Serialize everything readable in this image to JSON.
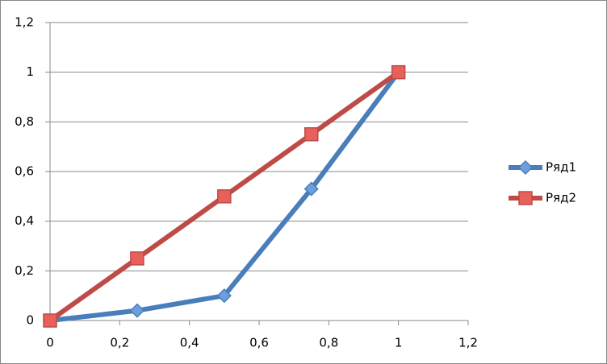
{
  "chart_data": {
    "type": "scatter",
    "x": [
      0,
      0.25,
      0.5,
      0.75,
      1
    ],
    "series": [
      {
        "name": "Ряд1",
        "color": "#4a7ebb",
        "marker": "diamond",
        "values": [
          0,
          0.04,
          0.1,
          0.53,
          1
        ]
      },
      {
        "name": "Ряд2",
        "color": "#be4b48",
        "marker": "square",
        "values": [
          0,
          0.25,
          0.5,
          0.75,
          1
        ]
      }
    ],
    "xlim": [
      0,
      1.2
    ],
    "xticks": [
      0,
      {
        "value": 0.2,
        "label": "0,2"
      },
      {
        "value": 0.4,
        "label": "0,4"
      },
      {
        "value": 0.6,
        "label": "0,6"
      },
      {
        "value": 0.8,
        "label": "0,8"
      },
      1,
      {
        "value": 1.2,
        "label": "1,2"
      }
    ],
    "ylim": [
      0,
      1.2
    ],
    "yticks": [
      0,
      {
        "value": 0.2,
        "label": "0,2"
      },
      {
        "value": 0.4,
        "label": "0,4"
      },
      {
        "value": 0.6,
        "label": "0,6"
      },
      {
        "value": 0.8,
        "label": "0,8"
      },
      1,
      {
        "value": 1.2,
        "label": "1,2"
      }
    ],
    "grid": true,
    "legend": "right"
  }
}
